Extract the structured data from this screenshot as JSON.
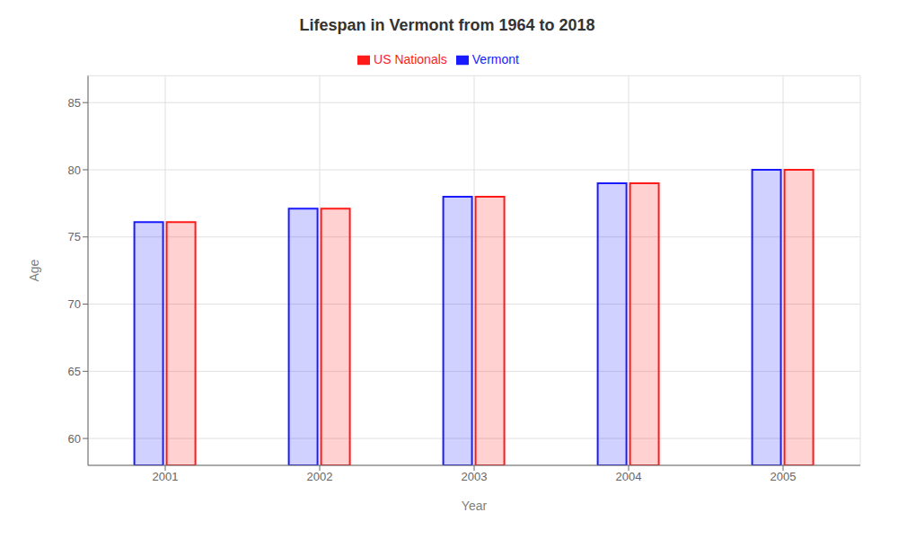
{
  "chart_data": {
    "type": "bar",
    "title": "Lifespan in Vermont from 1964 to 2018",
    "x_label": "Year",
    "y_label": "Age",
    "categories": [
      "2001",
      "2002",
      "2003",
      "2004",
      "2005"
    ],
    "series": [
      {
        "name": "Vermont",
        "color": "#1a1aff",
        "values": [
          76.1,
          77.1,
          78.0,
          79.0,
          80.0
        ]
      },
      {
        "name": "US Nationals",
        "color": "#ff1a1a",
        "values": [
          76.1,
          77.1,
          78.0,
          79.0,
          80.0
        ]
      }
    ],
    "ylim": [
      58,
      87
    ],
    "yticks": [
      60,
      65,
      70,
      75,
      80,
      85
    ],
    "grid": true,
    "legend": "top"
  }
}
